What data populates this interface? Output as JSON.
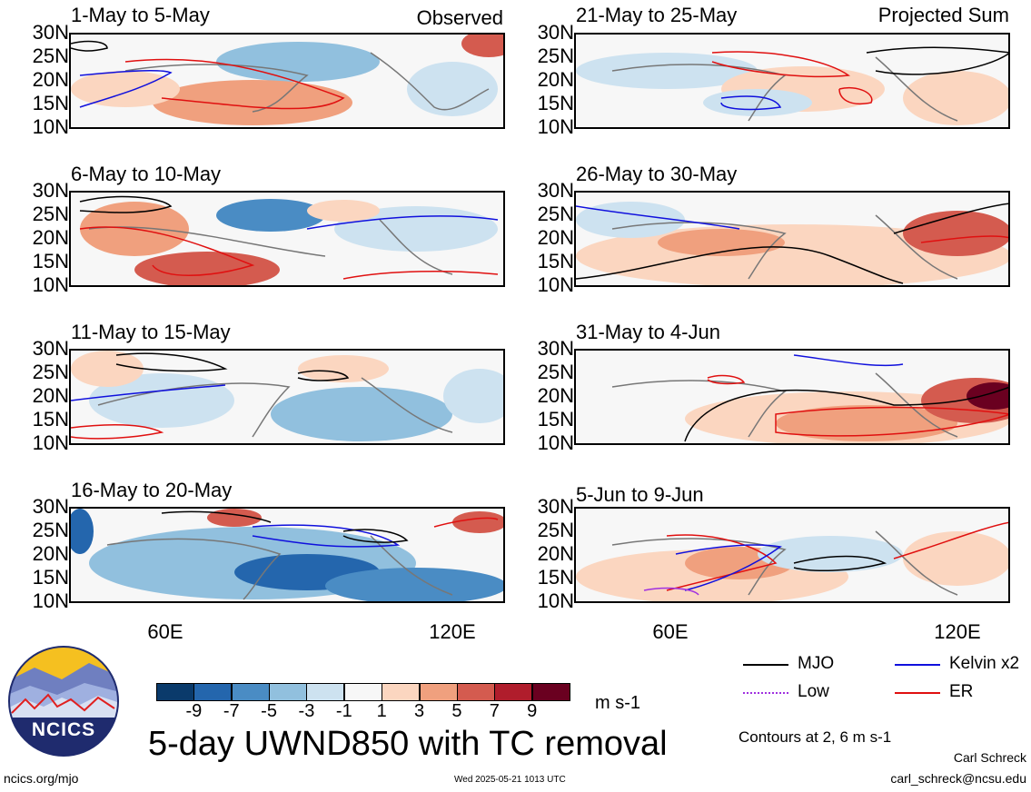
{
  "panels": [
    {
      "title": "1-May to 5-May",
      "corner": "Observed"
    },
    {
      "title": "6-May to 10-May",
      "corner": ""
    },
    {
      "title": "11-May to 15-May",
      "corner": ""
    },
    {
      "title": "16-May to 20-May",
      "corner": ""
    },
    {
      "title": "21-May to 25-May",
      "corner": "Projected Sum"
    },
    {
      "title": "26-May to 30-May",
      "corner": ""
    },
    {
      "title": "31-May to 4-Jun",
      "corner": ""
    },
    {
      "title": "5-Jun to 9-Jun",
      "corner": ""
    }
  ],
  "lat_labels": [
    "30N",
    "25N",
    "20N",
    "15N",
    "10N"
  ],
  "lon_labels": [
    "60E",
    "120E"
  ],
  "colorbar": {
    "labels": [
      "-9",
      "-7",
      "-5",
      "-3",
      "-1",
      "1",
      "3",
      "5",
      "7",
      "9"
    ],
    "colors": [
      "#0a3a6b",
      "#2466ad",
      "#4a8cc4",
      "#91c0de",
      "#cde2f0",
      "#f7f7f7",
      "#fbd6c0",
      "#f0a07e",
      "#d45b4f",
      "#b01d2c",
      "#6a0020"
    ],
    "units": "m s-1"
  },
  "legend": {
    "mjo": "MJO",
    "kelvin": "Kelvin x2",
    "low": "Low",
    "er": "ER",
    "mjo_color": "#000000",
    "kelvin_color": "#1010dd",
    "low_color": "#a030e0",
    "er_color": "#e01010",
    "contours_note": "Contours at 2, 6 m s-1"
  },
  "main_title": "5-day UWND850 with TC removal",
  "logo_text": "NCICS",
  "footer": {
    "left": "ncics.org/mjo",
    "center": "Wed 2025-05-21 1013 UTC",
    "author": "Carl Schreck",
    "email": "carl_schreck@ncsu.edu"
  }
}
